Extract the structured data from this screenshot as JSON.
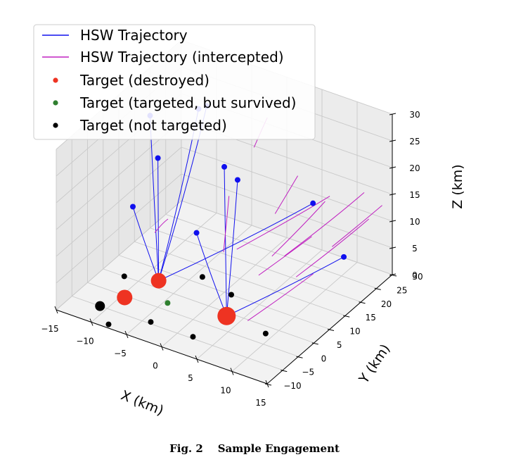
{
  "chart_data": {
    "type": "scatter3d",
    "xlabel": "X (km)",
    "ylabel": "Y (km)",
    "zlabel": "Z (km)",
    "x_ticks": [
      "−15",
      "−10",
      "−5",
      "0",
      "5",
      "10",
      "15"
    ],
    "y_ticks": [
      "−10",
      "−5",
      "0",
      "5",
      "10",
      "15",
      "20",
      "25",
      "30"
    ],
    "z_ticks": [
      "0",
      "5",
      "10",
      "15",
      "20",
      "25",
      "30"
    ],
    "xlim": [
      -15,
      15
    ],
    "ylim": [
      -10,
      30
    ],
    "zlim": [
      0,
      30
    ],
    "grid": true,
    "legend_position": "top-left",
    "legend": [
      {
        "label": "HSW Trajectory",
        "kind": "line",
        "color": "#1010ee"
      },
      {
        "label": "HSW Trajectory (intercepted)",
        "kind": "line",
        "color": "#c020c0"
      },
      {
        "label": "Target (destroyed)",
        "kind": "dot",
        "color": "#ee3322"
      },
      {
        "label": "Target (targeted, but survived)",
        "kind": "dot",
        "color": "#2f7f2f"
      },
      {
        "label": "Target (not targeted)",
        "kind": "dot",
        "color": "#000000"
      }
    ],
    "colors": {
      "trajectory": "#1010ee",
      "intercepted": "#c020c0",
      "destroyed": "#ee3322",
      "survived": "#2f7f2f",
      "not_targeted": "#000000",
      "launch": "#1010ee"
    },
    "targets": [
      {
        "status": "destroyed",
        "x": -9.5,
        "y": -0.5,
        "z": 0,
        "size": "medium"
      },
      {
        "status": "destroyed",
        "x": -8,
        "y": 7,
        "z": 0,
        "size": "medium"
      },
      {
        "status": "destroyed",
        "x": 3,
        "y": 4,
        "z": 0,
        "size": "large"
      },
      {
        "status": "survived",
        "x": -4.5,
        "y": 2,
        "z": 0,
        "size": "small"
      },
      {
        "status": "not_targeted",
        "x": -12,
        "y": 5,
        "z": 0,
        "size": "small"
      },
      {
        "status": "not_targeted",
        "x": -4,
        "y": 12,
        "z": 0,
        "size": "small"
      },
      {
        "status": "not_targeted",
        "x": 1,
        "y": 10,
        "z": 0,
        "size": "small"
      },
      {
        "status": "not_targeted",
        "x": -11,
        "y": -5,
        "z": 0,
        "size": "medium"
      },
      {
        "status": "not_targeted",
        "x": -4,
        "y": -4.5,
        "z": 0,
        "size": "small"
      },
      {
        "status": "not_targeted",
        "x": -8,
        "y": -9,
        "z": 0,
        "size": "small"
      },
      {
        "status": "not_targeted",
        "x": 2,
        "y": -4.5,
        "z": 0,
        "size": "small"
      },
      {
        "status": "not_targeted",
        "x": 9,
        "y": 3,
        "z": 0,
        "size": "small"
      }
    ],
    "trajectories": [
      {
        "status": "hit",
        "target": 1,
        "start": [
          -15,
          20,
          21
        ]
      },
      {
        "status": "hit",
        "target": 1,
        "start": [
          -13,
          18,
          15
        ]
      },
      {
        "status": "hit",
        "target": 1,
        "start": [
          -9,
          22,
          24
        ]
      },
      {
        "status": "hit",
        "target": 1,
        "start": [
          -8.5,
          23.5,
          24
        ]
      },
      {
        "status": "hit",
        "target": 1,
        "start": [
          -13,
          10,
          10
        ]
      },
      {
        "status": "hit",
        "target": 2,
        "start": [
          -4,
          19,
          17
        ]
      },
      {
        "status": "hit",
        "target": 2,
        "start": [
          -3,
          21,
          14
        ]
      },
      {
        "status": "hit",
        "target": 2,
        "start": [
          -3.5,
          9,
          10
        ]
      },
      {
        "status": "hit",
        "target": 2,
        "start": [
          13,
          19,
          8
        ]
      },
      {
        "status": "hit",
        "target": 1,
        "start": [
          5.5,
          26,
          11
        ]
      },
      {
        "status": "intercepted",
        "target": 0,
        "start": [
          -8,
          10,
          10
        ],
        "end": [
          -9,
          8,
          8
        ]
      },
      {
        "status": "intercepted",
        "target": 1,
        "start": [
          2,
          29,
          13
        ],
        "end": [
          1,
          24,
          8
        ]
      },
      {
        "status": "intercepted",
        "target": 1,
        "start": [
          7,
          28,
          12
        ],
        "end": [
          0,
          14,
          6
        ]
      },
      {
        "status": "intercepted",
        "target": 2,
        "start": [
          11,
          30,
          13.5
        ],
        "end": [
          5,
          18,
          5
        ]
      },
      {
        "status": "intercepted",
        "target": 2,
        "start": [
          13,
          27,
          11
        ],
        "end": [
          8,
          15,
          4
        ]
      },
      {
        "status": "intercepted",
        "target": 2,
        "start": [
          8,
          20,
          9
        ],
        "end": [
          4,
          12,
          4
        ]
      },
      {
        "status": "intercepted",
        "target": 1,
        "start": [
          -1,
          26,
          24
        ],
        "end": [
          -2,
          24,
          19
        ]
      },
      {
        "status": "intercepted",
        "target": 2,
        "start": [
          -2,
          16,
          14
        ],
        "end": [
          -1,
          12,
          6
        ]
      },
      {
        "status": "intercepted",
        "target": 1,
        "start": [
          14,
          29,
          13
        ],
        "end": [
          10,
          22,
          7
        ]
      },
      {
        "status": "intercepted",
        "target": 0,
        "start": [
          10,
          16,
          5
        ],
        "end": [
          6,
          4,
          0.5
        ]
      },
      {
        "status": "intercepted",
        "target": 2,
        "start": [
          9,
          22,
          15
        ],
        "end": [
          5,
          14,
          7
        ]
      }
    ]
  },
  "caption": {
    "figure_number": "Fig. 2",
    "title": "Sample Engagement"
  }
}
